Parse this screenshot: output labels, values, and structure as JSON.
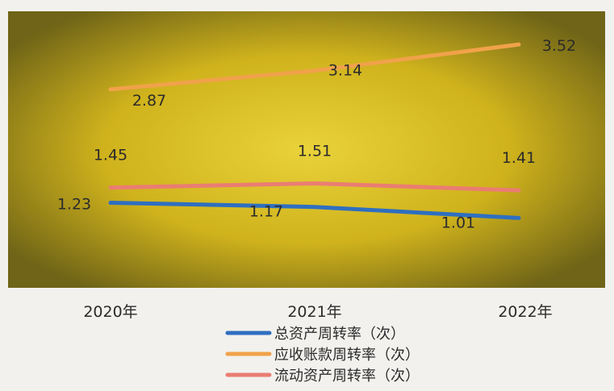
{
  "chart_data": {
    "type": "line",
    "categories": [
      "2020年",
      "2021年",
      "2022年"
    ],
    "series": [
      {
        "name": "总资产周转率（次）",
        "values": [
          1.23,
          1.17,
          1.01
        ],
        "color": "#2f6fc0"
      },
      {
        "name": "应收账款周转率（次）",
        "values": [
          2.87,
          3.14,
          3.52
        ],
        "color": "#f0a24a"
      },
      {
        "name": "流动资产周转率（次）",
        "values": [
          1.45,
          1.51,
          1.41
        ],
        "color": "#ea7d72"
      }
    ],
    "ylim": [
      0,
      4
    ],
    "grid": false,
    "legend_position": "bottom",
    "plot_background": "#d6b81f"
  }
}
